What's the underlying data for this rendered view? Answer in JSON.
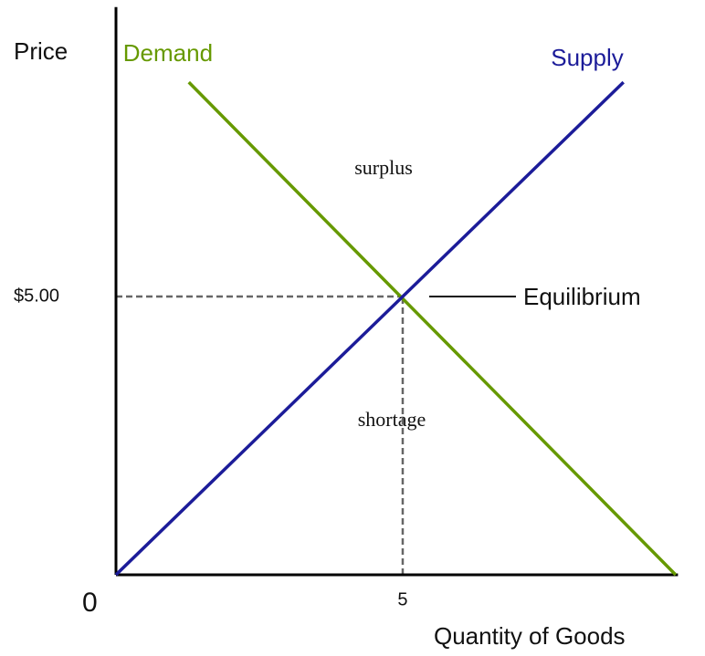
{
  "chart_data": {
    "type": "line",
    "xlabel": "Quantity of Goods",
    "ylabel": "Price",
    "series": [
      {
        "name": "Demand",
        "color": "#669900",
        "x": [
          1.27,
          9.76
        ],
        "values": [
          8.85,
          0
        ]
      },
      {
        "name": "Supply",
        "color": "#1c1c99",
        "x": [
          0,
          8.85
        ],
        "values": [
          0,
          8.85
        ]
      }
    ],
    "xlim": [
      0,
      9.8
    ],
    "ylim": [
      0,
      10.2
    ],
    "xticks": [
      0,
      5
    ],
    "yticks": [
      {
        "value": 5,
        "label": "$5.00"
      }
    ],
    "annotations": [
      "surplus",
      "shortage",
      "Equilibrium"
    ]
  }
}
